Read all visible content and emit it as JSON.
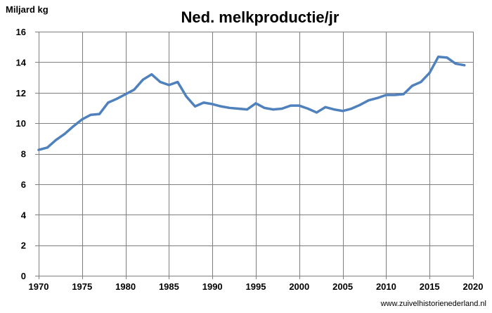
{
  "chart_data": {
    "type": "line",
    "title": "Ned. melkproductie/jr",
    "ylabel": "Miljard kg",
    "xlabel": "",
    "source": "www.zuivelhistorienederland.nl",
    "xlim": [
      1970,
      2020
    ],
    "ylim": [
      0,
      16
    ],
    "x_ticks": [
      1970,
      1975,
      1980,
      1985,
      1990,
      1995,
      2000,
      2005,
      2010,
      2015,
      2020
    ],
    "y_ticks": [
      0,
      2,
      4,
      6,
      8,
      10,
      12,
      14,
      16
    ],
    "grid": true,
    "line_color": "#4F81BD",
    "series": [
      {
        "x": [
          1970,
          1971,
          1972,
          1973,
          1974,
          1975,
          1976,
          1977,
          1978,
          1979,
          1980,
          1981,
          1982,
          1983,
          1984,
          1985,
          1986,
          1987,
          1988,
          1989,
          1990,
          1991,
          1992,
          1993,
          1994,
          1995,
          1996,
          1997,
          1998,
          1999,
          2000,
          2001,
          2002,
          2003,
          2004,
          2005,
          2006,
          2007,
          2008,
          2009,
          2010,
          2011,
          2012,
          2013,
          2014,
          2015,
          2016,
          2017,
          2018,
          2019
        ],
        "values": [
          8.25,
          8.4,
          8.9,
          9.3,
          9.8,
          10.25,
          10.55,
          10.6,
          11.35,
          11.6,
          11.9,
          12.2,
          12.85,
          13.2,
          12.7,
          12.5,
          12.7,
          11.75,
          11.1,
          11.35,
          11.25,
          11.1,
          11.0,
          10.95,
          10.9,
          11.3,
          11.0,
          10.9,
          10.95,
          11.15,
          11.15,
          10.95,
          10.7,
          11.05,
          10.9,
          10.8,
          10.95,
          11.2,
          11.5,
          11.65,
          11.85,
          11.85,
          11.9,
          12.45,
          12.7,
          13.3,
          14.35,
          14.3,
          13.9,
          13.8
        ]
      }
    ]
  }
}
